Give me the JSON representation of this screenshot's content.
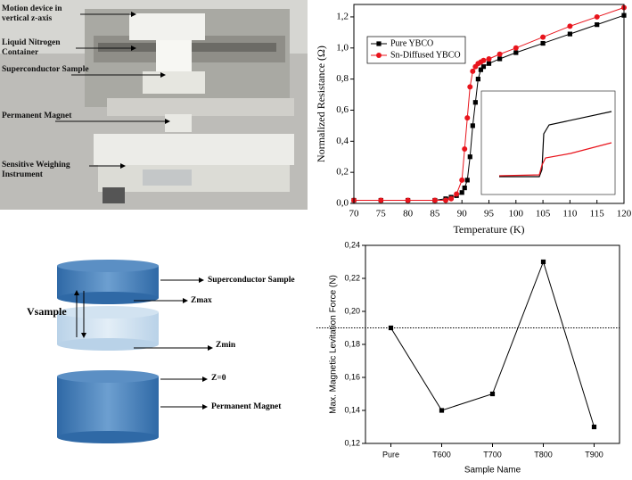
{
  "photo": {
    "labels": [
      "Motion device in vertical z-axis",
      "Liquid Nitrogen Container",
      "Superconductor Sample",
      "Permanent Magnet",
      "Sensitive Weighing Instrument"
    ]
  },
  "diagram": {
    "labels": {
      "superconductor": "Superconductor Sample",
      "zmax": "Zmax",
      "vsample": "Vsample",
      "zmin": "Zmin",
      "z0": "Z=0",
      "magnet": "Permanent Magnet"
    }
  },
  "chart_data": [
    {
      "type": "line",
      "xlabel": "Temperature (K)",
      "ylabel": "Normalized Resistance (Ω)",
      "x": [
        70,
        75,
        80,
        85,
        87,
        88,
        89,
        90,
        90.5,
        91,
        91.5,
        92,
        92.5,
        93,
        93.5,
        94,
        95,
        97,
        100,
        105,
        110,
        115,
        120
      ],
      "series": [
        {
          "name": "Pure YBCO",
          "color": "#000000",
          "marker": "square",
          "values": [
            0.02,
            0.02,
            0.02,
            0.02,
            0.03,
            0.04,
            0.05,
            0.07,
            0.1,
            0.15,
            0.3,
            0.5,
            0.65,
            0.8,
            0.86,
            0.88,
            0.9,
            0.93,
            0.97,
            1.03,
            1.09,
            1.15,
            1.21
          ]
        },
        {
          "name": "Sn-Diffused YBCO",
          "color": "#e8141c",
          "marker": "circle",
          "values": [
            0.02,
            0.02,
            0.02,
            0.02,
            0.02,
            0.03,
            0.06,
            0.15,
            0.35,
            0.55,
            0.75,
            0.85,
            0.88,
            0.9,
            0.91,
            0.92,
            0.93,
            0.96,
            1.0,
            1.07,
            1.14,
            1.2,
            1.26
          ]
        }
      ],
      "xlim": [
        70,
        120
      ],
      "xticks": [
        70,
        75,
        80,
        85,
        90,
        95,
        100,
        105,
        110,
        115,
        120
      ],
      "ylim": [
        0,
        1.28
      ],
      "yticks": [
        {
          "value": 0,
          "label": "0,0"
        },
        {
          "value": 0.2,
          "label": "0,2"
        },
        {
          "value": 0.4,
          "label": "0,4"
        },
        {
          "value": 0.6,
          "label": "0,6"
        },
        {
          "value": 0.8,
          "label": "0,8"
        },
        {
          "value": 1.0,
          "label": "1,0"
        },
        {
          "value": 1.2,
          "label": "1,2"
        }
      ],
      "legend": "upper left"
    },
    {
      "type": "line",
      "xlabel": "Sample Name",
      "ylabel": "Max. Magnetic Levitation Force (N)",
      "categories": [
        "Pure",
        "T600",
        "T700",
        "T800",
        "T900"
      ],
      "series": [
        {
          "color": "#000000",
          "marker": "square",
          "values": [
            0.19,
            0.14,
            0.15,
            0.23,
            0.13
          ]
        }
      ],
      "ylim": [
        0.12,
        0.24
      ],
      "yticks": [
        {
          "value": 0.12,
          "label": "0,12"
        },
        {
          "value": 0.14,
          "label": "0,14"
        },
        {
          "value": 0.16,
          "label": "0,16"
        },
        {
          "value": 0.18,
          "label": "0,18"
        },
        {
          "value": 0.2,
          "label": "0,20"
        },
        {
          "value": 0.22,
          "label": "0,22"
        },
        {
          "value": 0.24,
          "label": "0,24"
        }
      ],
      "reference_line": 0.19
    }
  ]
}
